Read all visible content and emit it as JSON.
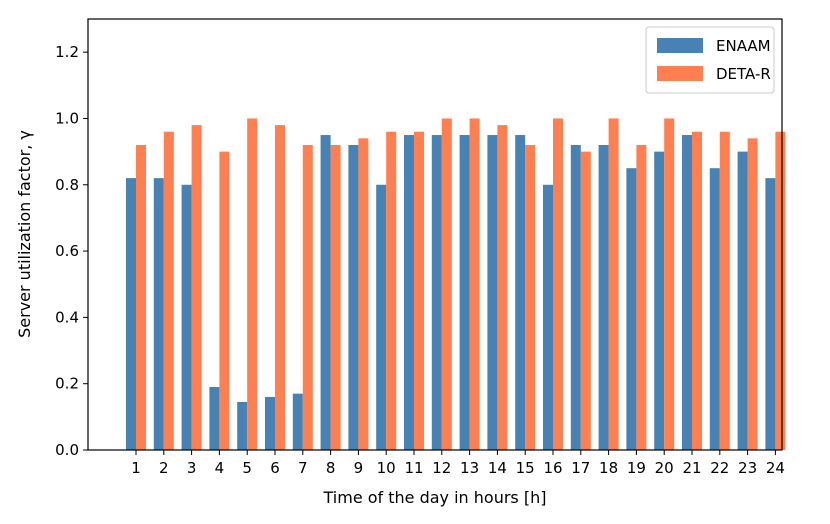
{
  "chart_data": {
    "type": "bar",
    "categories": [
      "1",
      "2",
      "3",
      "4",
      "5",
      "6",
      "7",
      "8",
      "9",
      "10",
      "11",
      "12",
      "13",
      "14",
      "15",
      "16",
      "17",
      "18",
      "19",
      "20",
      "21",
      "22",
      "23",
      "24"
    ],
    "series": [
      {
        "name": "ENAAM",
        "color": "#4682b4",
        "values": [
          0.82,
          0.82,
          0.8,
          0.19,
          0.145,
          0.16,
          0.17,
          0.95,
          0.92,
          0.8,
          0.95,
          0.95,
          0.95,
          0.95,
          0.95,
          0.8,
          0.92,
          0.92,
          0.85,
          0.9,
          0.95,
          0.85,
          0.9,
          0.82
        ]
      },
      {
        "name": "DETA-R",
        "color": "#ff7f50",
        "values": [
          0.92,
          0.96,
          0.98,
          0.9,
          1.0,
          0.98,
          0.92,
          0.92,
          0.94,
          0.96,
          0.96,
          1.0,
          1.0,
          0.98,
          0.92,
          1.0,
          0.9,
          1.0,
          0.92,
          1.0,
          0.96,
          0.96,
          0.94,
          0.96
        ]
      }
    ],
    "xlabel": "Time of the day in hours [h]",
    "ylabel": "Server utilization factor, γ",
    "ylim": [
      0,
      1.3
    ],
    "yticks": [
      "0.0",
      "0.2",
      "0.4",
      "0.6",
      "0.8",
      "1.0",
      "1.2"
    ],
    "grid": false,
    "legend": "top-right"
  }
}
